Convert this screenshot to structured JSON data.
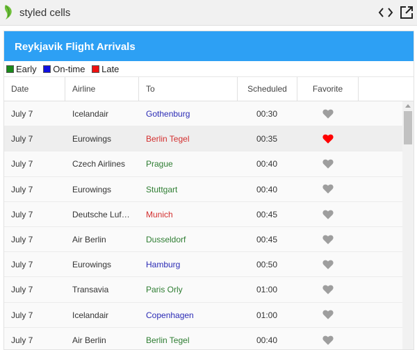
{
  "app": {
    "title": "styled cells",
    "logo_icon": "leaf-logo-icon",
    "code_icon": "code-icon",
    "external_icon": "external-link-icon"
  },
  "grid": {
    "title": "Reykjavik Flight Arrivals",
    "legend": [
      {
        "label": "Early",
        "color": "#1a8a1a"
      },
      {
        "label": "On-time",
        "color": "#1010e0"
      },
      {
        "label": "Late",
        "color": "#ee1010"
      }
    ],
    "columns": [
      "Date",
      "Airline",
      "To",
      "Scheduled",
      "Favorite"
    ],
    "status_colors": {
      "early": "#2e7d32",
      "ontime": "#2b2bb5",
      "late": "#d32f2f"
    },
    "favorite_colors": {
      "on": "#ff0000",
      "off": "#9e9e9e"
    },
    "rows": [
      {
        "date": "July 7",
        "airline": "Icelandair",
        "to": "Gothenburg",
        "scheduled": "00:30",
        "status": "ontime",
        "favorite": false,
        "selected": false
      },
      {
        "date": "July 7",
        "airline": "Eurowings",
        "to": "Berlin Tegel",
        "scheduled": "00:35",
        "status": "late",
        "favorite": true,
        "selected": true
      },
      {
        "date": "July 7",
        "airline": "Czech Airlines",
        "to": "Prague",
        "scheduled": "00:40",
        "status": "early",
        "favorite": false,
        "selected": false
      },
      {
        "date": "July 7",
        "airline": "Eurowings",
        "to": "Stuttgart",
        "scheduled": "00:40",
        "status": "early",
        "favorite": false,
        "selected": false
      },
      {
        "date": "July 7",
        "airline": "Deutsche Luft…",
        "to": "Munich",
        "scheduled": "00:45",
        "status": "late",
        "favorite": false,
        "selected": false
      },
      {
        "date": "July 7",
        "airline": "Air Berlin",
        "to": "Dusseldorf",
        "scheduled": "00:45",
        "status": "early",
        "favorite": false,
        "selected": false
      },
      {
        "date": "July 7",
        "airline": "Eurowings",
        "to": "Hamburg",
        "scheduled": "00:50",
        "status": "ontime",
        "favorite": false,
        "selected": false
      },
      {
        "date": "July 7",
        "airline": "Transavia",
        "to": "Paris Orly",
        "scheduled": "01:00",
        "status": "early",
        "favorite": false,
        "selected": false
      },
      {
        "date": "July 7",
        "airline": "Icelandair",
        "to": "Copenhagen",
        "scheduled": "01:00",
        "status": "ontime",
        "favorite": false,
        "selected": false
      },
      {
        "date": "July 7",
        "airline": "Air Berlin",
        "to": "Berlin Tegel",
        "scheduled": "00:40",
        "status": "early",
        "favorite": false,
        "selected": false
      }
    ]
  }
}
